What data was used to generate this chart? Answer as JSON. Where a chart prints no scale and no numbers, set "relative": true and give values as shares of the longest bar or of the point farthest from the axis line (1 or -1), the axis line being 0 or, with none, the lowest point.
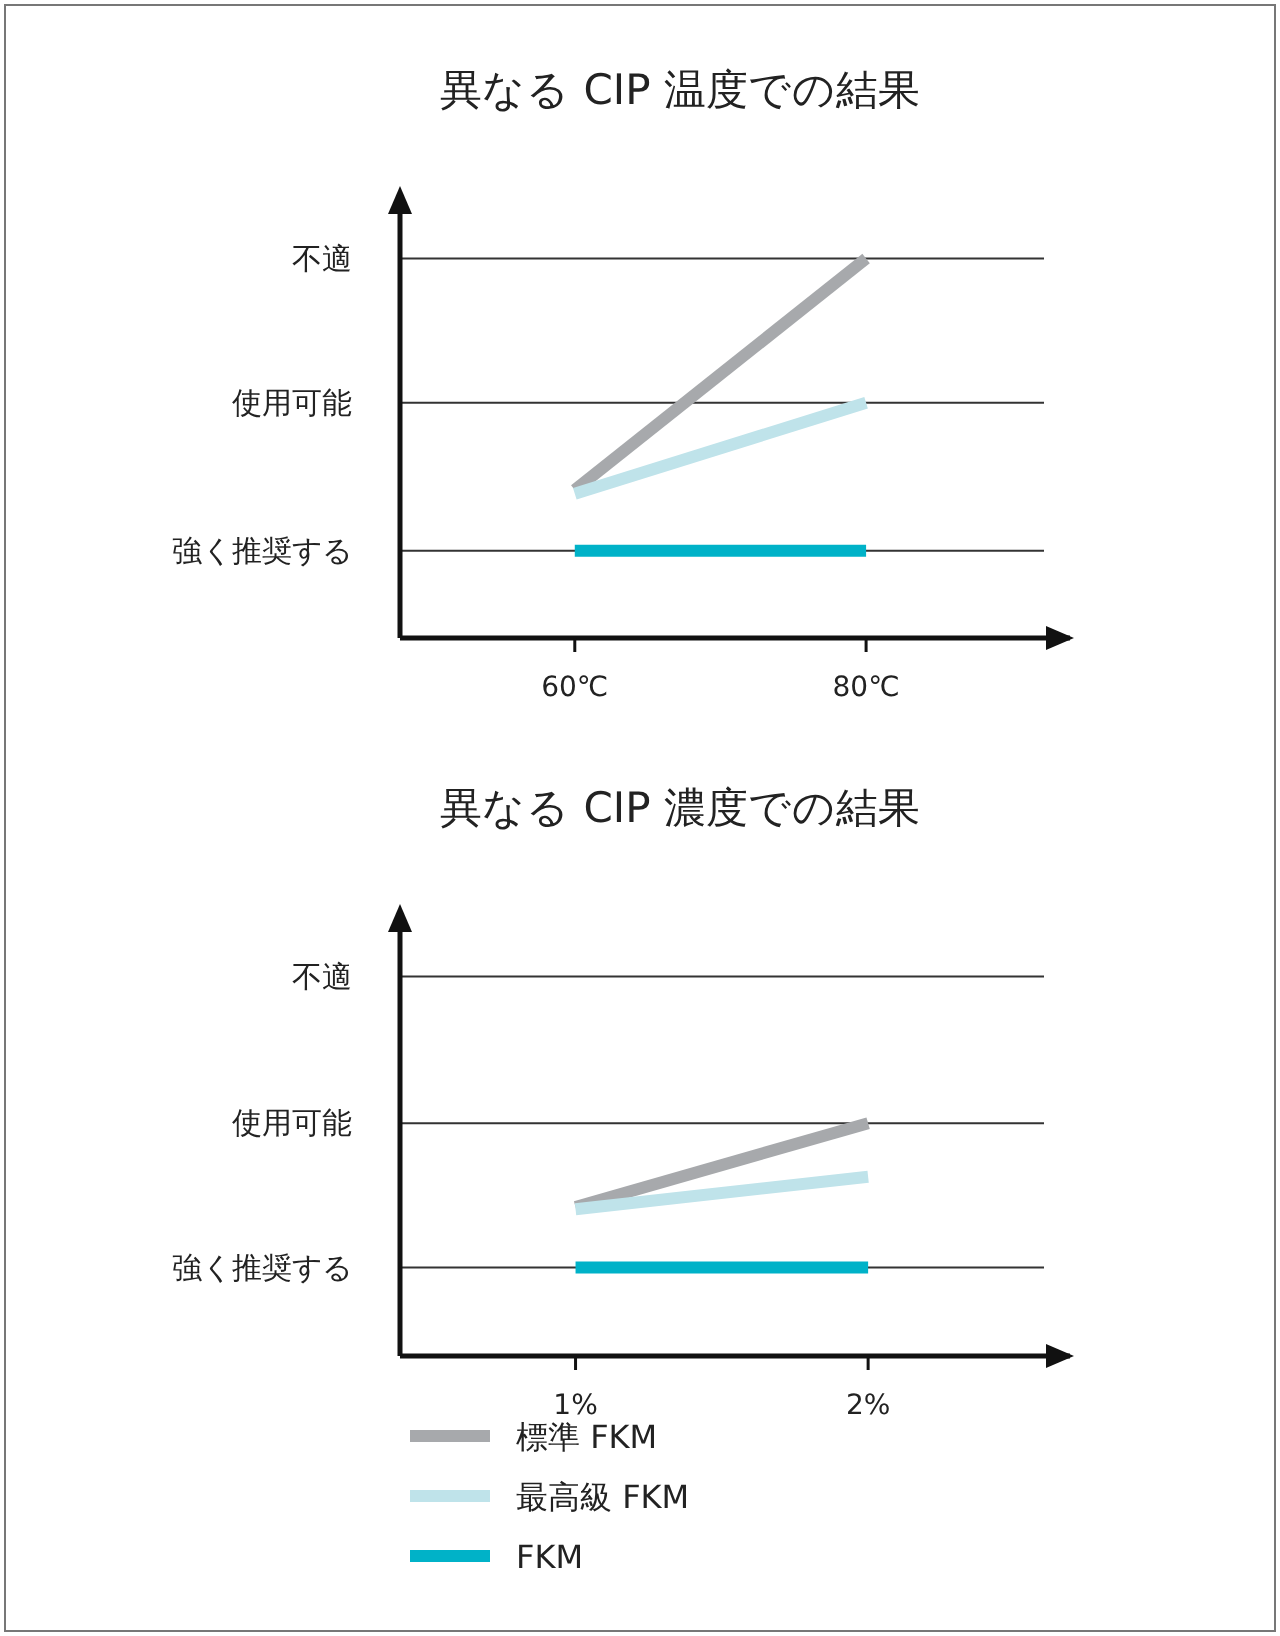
{
  "chart_data": [
    {
      "type": "line",
      "title": "異なる CIP 温度での結果",
      "x": [
        60,
        80
      ],
      "xlim": [
        48,
        94
      ],
      "xticks": [
        {
          "value": 60,
          "label": "60℃"
        },
        {
          "value": 80,
          "label": "80℃"
        }
      ],
      "relative": true,
      "legend": false,
      "marker": "none",
      "ref_lines": [
        {
          "axis": "y",
          "value": 0.23,
          "label": "強く推奨する"
        },
        {
          "axis": "y",
          "value": 0.62,
          "label": "使用可能"
        },
        {
          "axis": "y",
          "value": 1,
          "label": "不適"
        }
      ],
      "series": [
        {
          "color": "#a7a9ac",
          "values": [
            0.39,
            1
          ]
        },
        {
          "color": "#bfe3ea",
          "values": [
            0.38,
            0.62
          ]
        },
        {
          "color": "#00b2c8",
          "values": [
            0.23,
            0.23
          ]
        }
      ]
    },
    {
      "type": "line",
      "title": "異なる CIP 濃度での結果",
      "x": [
        1,
        2
      ],
      "xlim": [
        0.4,
        2.69
      ],
      "xticks": [
        {
          "value": 1,
          "label": "1%"
        },
        {
          "value": 2,
          "label": "2%"
        }
      ],
      "relative": true,
      "legend": "bottom",
      "marker": "none",
      "ref_lines": [
        {
          "axis": "y",
          "value": 0.38,
          "label": "強く推奨する"
        },
        {
          "axis": "y",
          "value": 1,
          "label": "使用可能"
        },
        {
          "axis": "y",
          "value": 1.63,
          "label": "不適"
        }
      ],
      "series": [
        {
          "name": "標準 FKM",
          "color": "#a7a9ac",
          "values": [
            0.64,
            1
          ]
        },
        {
          "name": "最高級 FKM",
          "color": "#bfe3ea",
          "values": [
            0.63,
            0.77
          ]
        },
        {
          "name": "FKM",
          "color": "#00b2c8",
          "values": [
            0.38,
            0.38
          ]
        }
      ]
    }
  ]
}
